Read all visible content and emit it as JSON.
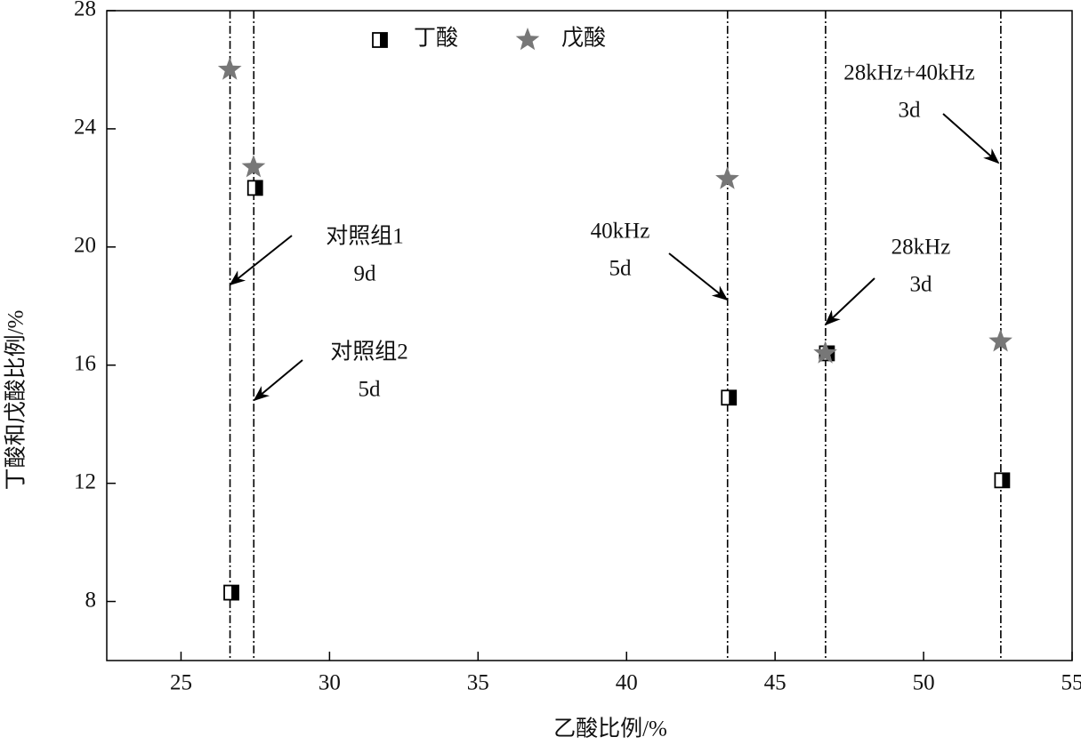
{
  "chart_data": {
    "type": "scatter",
    "x_label": "乙酸比例/%",
    "y_label": "丁酸和戊酸比例/%",
    "x": [
      26.65,
      27.45,
      43.4,
      46.7,
      52.6
    ],
    "series": [
      {
        "name": "丁酸",
        "color": "#000000",
        "marker": "half-square",
        "values": [
          8.3,
          22.0,
          14.9,
          16.4,
          12.1
        ]
      },
      {
        "name": "戊酸",
        "color": "#777777",
        "marker": "star",
        "values": [
          26.0,
          22.7,
          22.3,
          16.4,
          16.8
        ]
      }
    ],
    "xlim": [
      22.5,
      55
    ],
    "ylim": [
      6,
      28
    ],
    "xticks": [
      25,
      30,
      35,
      40,
      45,
      50,
      55
    ],
    "yticks": [
      8,
      12,
      16,
      20,
      24,
      28
    ],
    "reference_lines": true,
    "legend": "top",
    "annotations": [
      {
        "lines": [
          "对照组1",
          "9d"
        ]
      },
      {
        "lines": [
          "对照组2",
          "5d"
        ]
      },
      {
        "lines": [
          "40kHz",
          "5d"
        ]
      },
      {
        "lines": [
          "28kHz",
          "3d"
        ]
      },
      {
        "lines": [
          "28kHz+40kHz",
          "3d"
        ]
      }
    ]
  }
}
